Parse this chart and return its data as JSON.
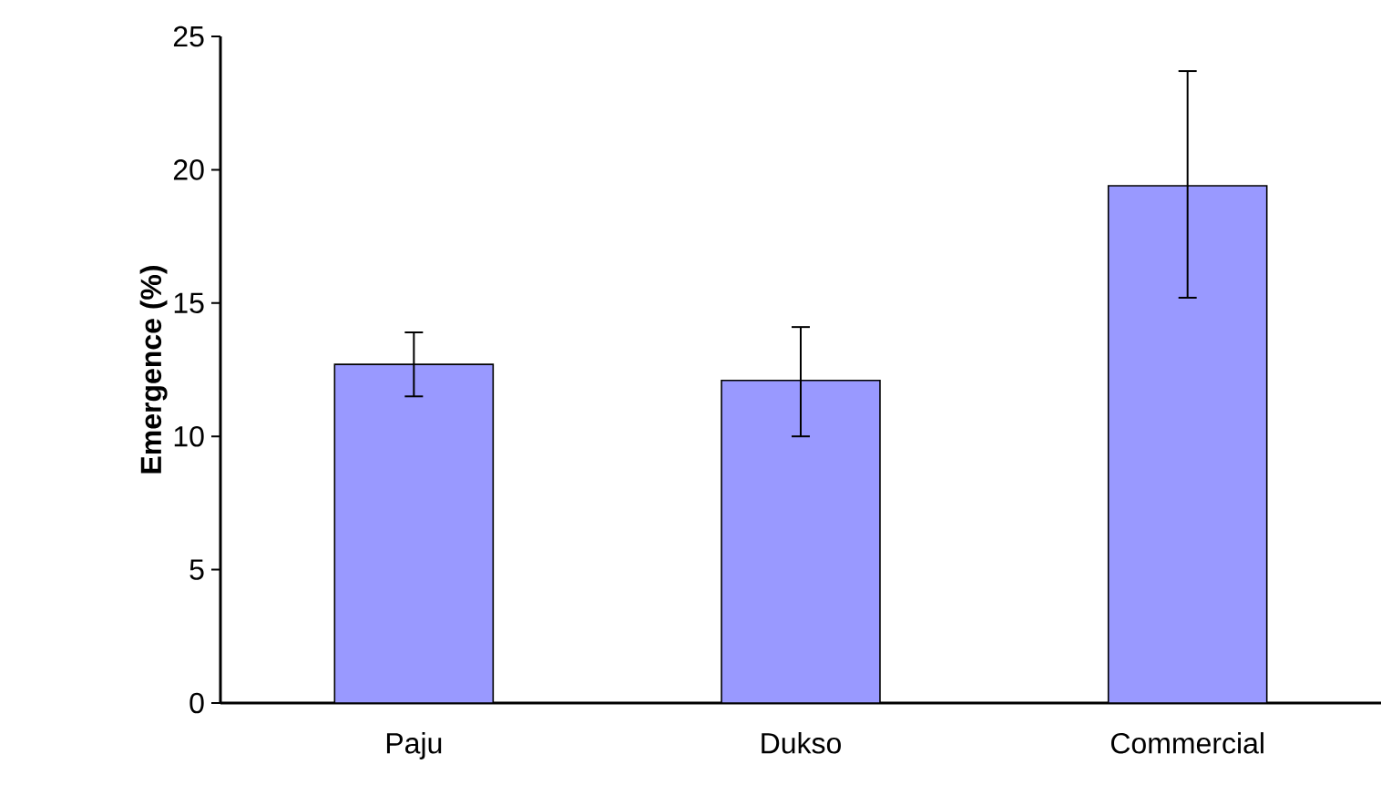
{
  "chart_data": {
    "type": "bar",
    "ylabel": "Emergence (%)",
    "categories": [
      "Paju",
      "Dukso",
      "Commercial"
    ],
    "values": [
      12.7,
      12.1,
      19.4
    ],
    "errors": [
      [
        11.5,
        13.9
      ],
      [
        10.0,
        14.1
      ],
      [
        15.2,
        23.7
      ]
    ],
    "color": "#9999ff",
    "ylim": [
      0,
      25
    ],
    "yticks": [
      0,
      5,
      10,
      15,
      20,
      25
    ],
    "grid": false
  }
}
